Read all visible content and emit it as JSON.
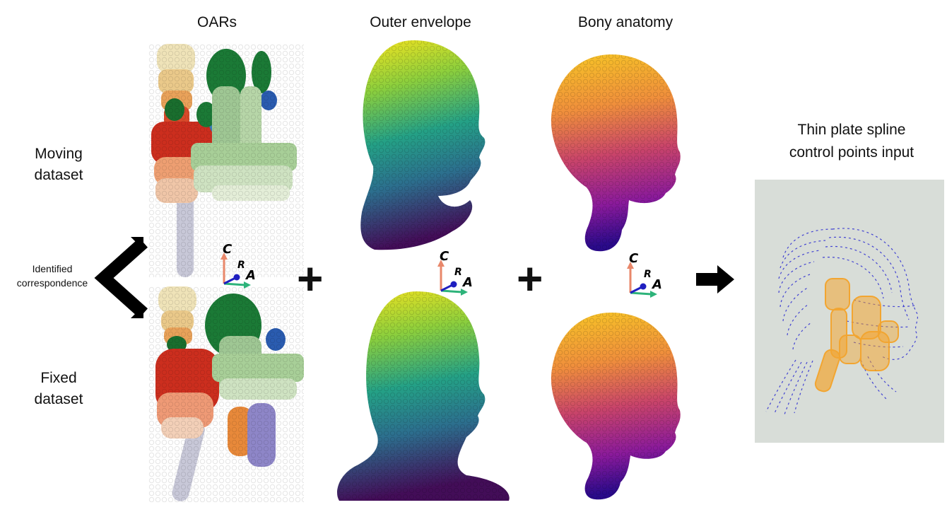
{
  "columns": {
    "oars": "OARs",
    "outer_envelope": "Outer envelope",
    "bony_anatomy": "Bony anatomy"
  },
  "rows": {
    "moving_line1": "Moving",
    "moving_line2": "dataset",
    "fixed_line1": "Fixed",
    "fixed_line2": "dataset"
  },
  "correspondence": {
    "line1": "Identified",
    "line2": "correspondence"
  },
  "operators": {
    "plus": "+"
  },
  "tps": {
    "line1": "Thin plate spline",
    "line2": "control points input"
  },
  "axes": {
    "c": "C",
    "r": "R",
    "a": "A"
  },
  "colors": {
    "axis_c": "#e8876a",
    "axis_a": "#2db37a",
    "axis_r": "#1f1fc0",
    "tps_panel": "#d8ddd8",
    "tps_envelope": "#2a2ad0",
    "tps_oars": "#f5a020"
  }
}
